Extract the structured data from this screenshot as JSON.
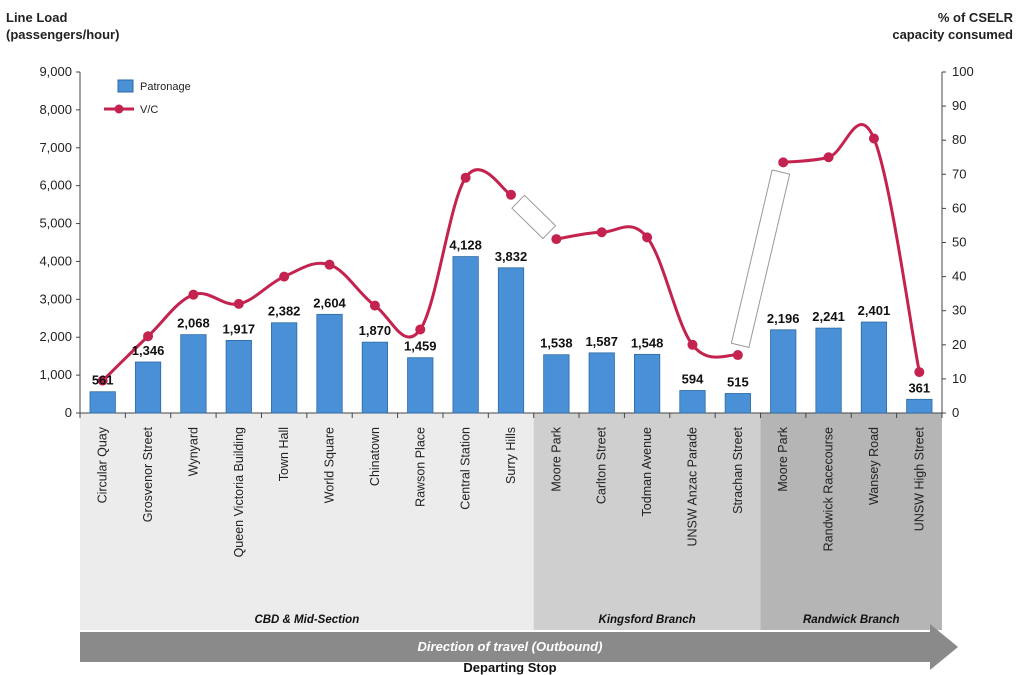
{
  "chart_data": {
    "type": "bar",
    "ylabel_left": [
      "Line Load",
      "(passengers/hour)"
    ],
    "ylabel_right": [
      "% of CSELR",
      "capacity consumed"
    ],
    "xlabel": "Departing Stop",
    "direction_label": "Direction of travel (Outbound)",
    "ylim_left": [
      0,
      9000
    ],
    "ylim_right": [
      0,
      100
    ],
    "yticks_left": [
      "0",
      "1,000",
      "2,000",
      "3,000",
      "4,000",
      "5,000",
      "6,000",
      "7,000",
      "8,000",
      "9,000"
    ],
    "yticks_right": [
      "0",
      "10",
      "20",
      "30",
      "40",
      "50",
      "60",
      "70",
      "80",
      "90",
      "100"
    ],
    "legend": {
      "placement": "top-left",
      "entries": [
        "Patronage",
        "V/C"
      ]
    },
    "categories": [
      "Circular Quay",
      "Grosvenor Street",
      "Wynyard",
      "Queen Victoria Building",
      "Town Hall",
      "World Square",
      "Chinatown",
      "Rawson Place",
      "Central Station",
      "Surry Hills",
      "Moore Park",
      "Carlton Street",
      "Todman Avenue",
      "UNSW Anzac Parade",
      "Strachan Street",
      "Moore Park",
      "Randwick Racecourse",
      "Wansey Road",
      "UNSW High Street"
    ],
    "series": [
      {
        "name": "Patronage",
        "type": "bar",
        "axis": "left",
        "values": [
          561,
          1346,
          2068,
          1917,
          2382,
          2604,
          1870,
          1459,
          4128,
          3832,
          1538,
          1587,
          1548,
          594,
          515,
          2196,
          2241,
          2401,
          361
        ],
        "labels": [
          "561",
          "1,346",
          "2,068",
          "1,917",
          "2,382",
          "2,604",
          "1,870",
          "1,459",
          "4,128",
          "3,832",
          "1,538",
          "1,587",
          "1,548",
          "594",
          "515",
          "2,196",
          "2,241",
          "2,401",
          "361"
        ]
      },
      {
        "name": "V/C",
        "type": "line",
        "axis": "right",
        "values": [
          9.5,
          22.5,
          34.7,
          32,
          40,
          43.5,
          31.5,
          24.5,
          69,
          64,
          51,
          53,
          51.5,
          20,
          17,
          73.5,
          75,
          80.5,
          12
        ]
      }
    ],
    "sections": [
      {
        "label": "CBD & Mid-Section",
        "start": 0,
        "end": 9
      },
      {
        "label": "Kingsford Branch",
        "start": 10,
        "end": 14
      },
      {
        "label": "Randwick Branch",
        "start": 15,
        "end": 18
      }
    ],
    "breaks": [
      [
        9,
        10
      ],
      [
        14,
        15
      ]
    ],
    "grid": false
  },
  "colors": {
    "bar": "#4a90d6",
    "bar_edge": "#2c6aa3",
    "line": "#c3234e",
    "section_cbd": "#ececec",
    "section_kingsford": "#cfcfcf",
    "section_randwick": "#b5b5b5",
    "arrow": "#8a8a8a"
  }
}
